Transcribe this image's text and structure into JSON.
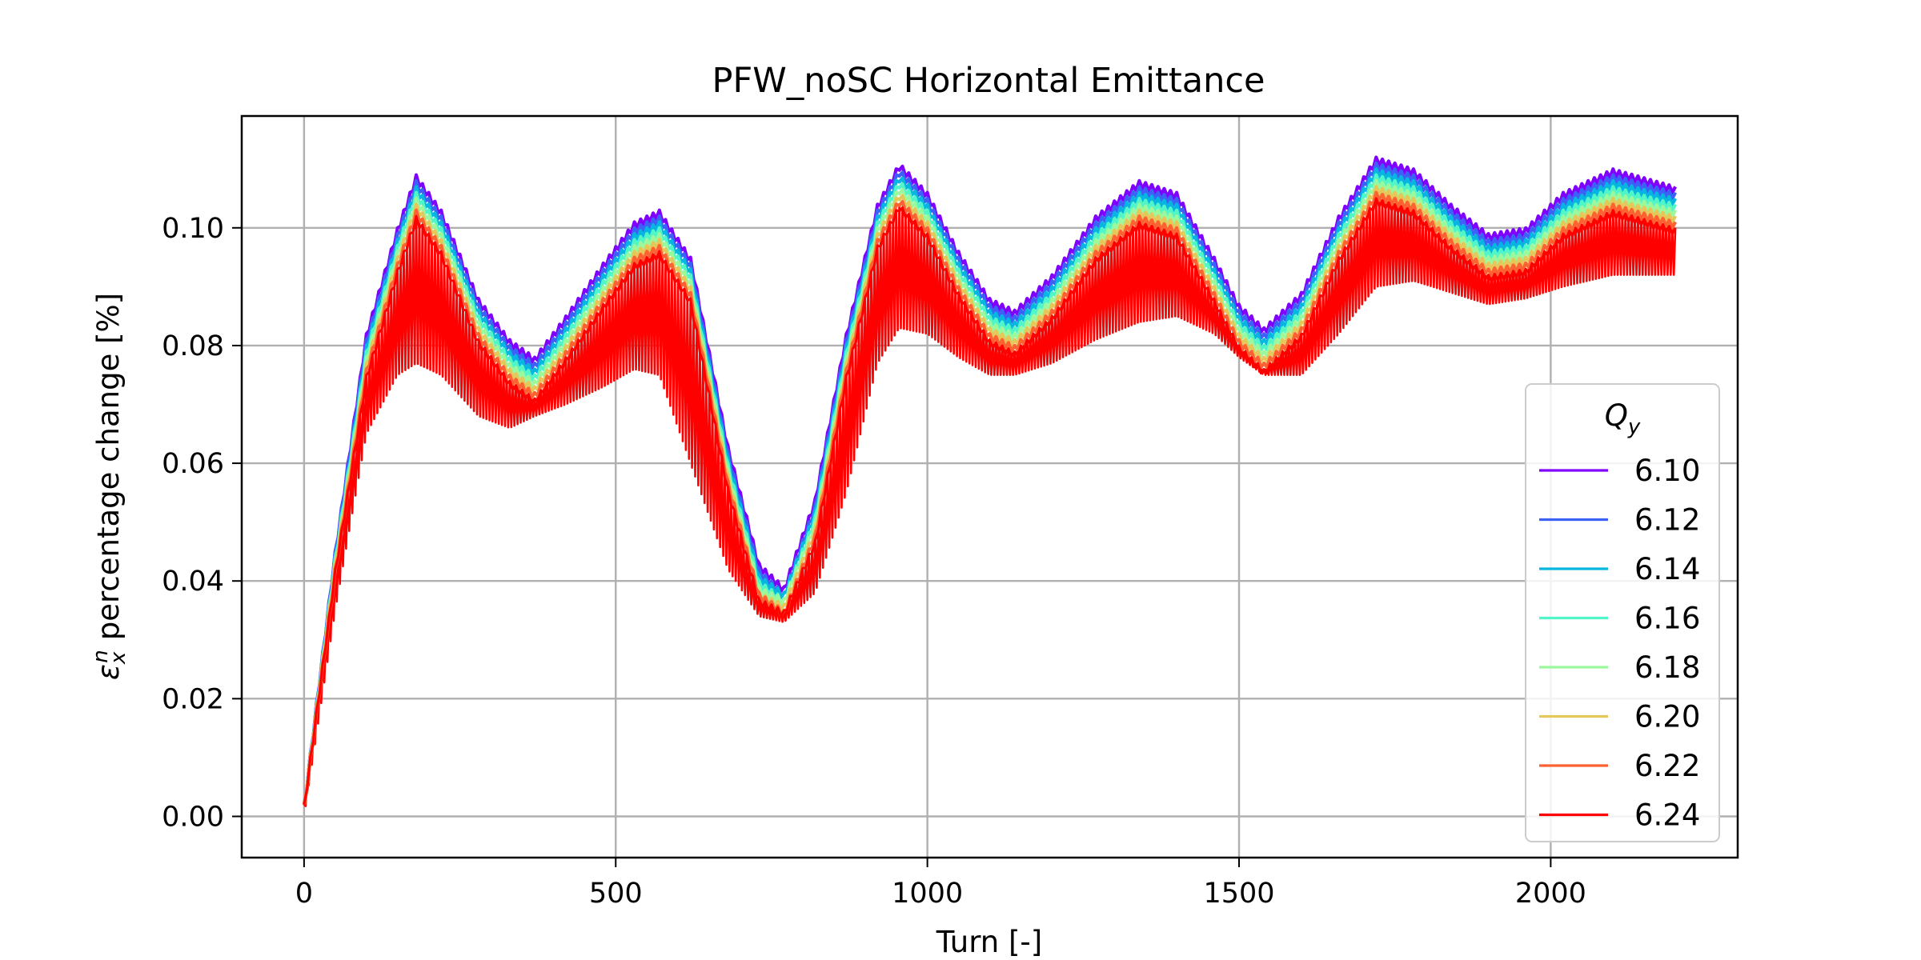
{
  "chart_data": {
    "type": "line",
    "title": "PFW_noSC Horizontal Emittance",
    "xlabel": "Turn [-]",
    "ylabel": "percentage change [%]",
    "ylabel_symbol": "ε",
    "ylabel_sub": "x",
    "ylabel_sup": "n",
    "xlim": [
      -100,
      2300
    ],
    "ylim": [
      -0.007,
      0.119
    ],
    "xticks": [
      0,
      500,
      1000,
      1500,
      2000
    ],
    "yticks": [
      0.0,
      0.02,
      0.04,
      0.06,
      0.08,
      0.1
    ],
    "xtick_labels": [
      "0",
      "500",
      "1000",
      "1500",
      "2000"
    ],
    "ytick_labels": [
      "0.00",
      "0.02",
      "0.04",
      "0.06",
      "0.08",
      "0.10"
    ],
    "grid": true,
    "legend": {
      "title": "Q",
      "title_sub": "y",
      "placement": "lower-right"
    },
    "x": [
      0,
      50,
      100,
      150,
      180,
      220,
      280,
      330,
      370,
      420,
      480,
      530,
      570,
      620,
      680,
      730,
      770,
      820,
      870,
      920,
      955,
      1000,
      1050,
      1100,
      1140,
      1200,
      1270,
      1340,
      1400,
      1460,
      1500,
      1540,
      1600,
      1660,
      1720,
      1780,
      1840,
      1900,
      1960,
      2020,
      2100,
      2200
    ],
    "min_envelope": [
      0.0,
      0.035,
      0.065,
      0.075,
      0.077,
      0.075,
      0.068,
      0.066,
      0.068,
      0.07,
      0.073,
      0.076,
      0.075,
      0.06,
      0.042,
      0.034,
      0.033,
      0.038,
      0.055,
      0.077,
      0.083,
      0.082,
      0.078,
      0.075,
      0.075,
      0.077,
      0.081,
      0.084,
      0.085,
      0.082,
      0.078,
      0.075,
      0.075,
      0.082,
      0.09,
      0.091,
      0.089,
      0.087,
      0.088,
      0.09,
      0.092,
      0.092
    ],
    "series": [
      {
        "name": "6.10",
        "color": "#8000ff",
        "values": [
          0.002,
          0.045,
          0.082,
          0.1,
          0.109,
          0.103,
          0.088,
          0.081,
          0.078,
          0.085,
          0.094,
          0.101,
          0.103,
          0.095,
          0.063,
          0.043,
          0.039,
          0.054,
          0.082,
          0.104,
          0.111,
          0.106,
          0.096,
          0.088,
          0.086,
          0.092,
          0.102,
          0.108,
          0.106,
          0.095,
          0.087,
          0.083,
          0.089,
          0.102,
          0.112,
          0.11,
          0.104,
          0.099,
          0.1,
          0.106,
          0.11,
          0.107
        ]
      },
      {
        "name": "6.12",
        "color": "#3c61f7",
        "values": [
          0.002,
          0.045,
          0.081,
          0.099,
          0.108,
          0.102,
          0.087,
          0.08,
          0.077,
          0.084,
          0.093,
          0.1,
          0.102,
          0.094,
          0.062,
          0.042,
          0.038,
          0.053,
          0.081,
          0.103,
          0.11,
          0.105,
          0.095,
          0.087,
          0.085,
          0.091,
          0.101,
          0.107,
          0.105,
          0.094,
          0.086,
          0.082,
          0.088,
          0.101,
          0.111,
          0.109,
          0.103,
          0.098,
          0.099,
          0.105,
          0.109,
          0.106
        ]
      },
      {
        "name": "6.14",
        "color": "#06b6e0",
        "values": [
          0.002,
          0.044,
          0.08,
          0.098,
          0.107,
          0.101,
          0.086,
          0.079,
          0.076,
          0.083,
          0.092,
          0.099,
          0.101,
          0.093,
          0.061,
          0.041,
          0.038,
          0.052,
          0.08,
          0.102,
          0.109,
          0.104,
          0.094,
          0.086,
          0.084,
          0.09,
          0.1,
          0.106,
          0.104,
          0.093,
          0.085,
          0.081,
          0.087,
          0.1,
          0.11,
          0.108,
          0.102,
          0.097,
          0.098,
          0.104,
          0.108,
          0.105
        ]
      },
      {
        "name": "6.16",
        "color": "#50f6c8",
        "values": [
          0.002,
          0.044,
          0.079,
          0.097,
          0.106,
          0.1,
          0.085,
          0.078,
          0.075,
          0.082,
          0.091,
          0.098,
          0.1,
          0.092,
          0.06,
          0.04,
          0.037,
          0.051,
          0.079,
          0.101,
          0.108,
          0.103,
          0.093,
          0.085,
          0.083,
          0.089,
          0.099,
          0.105,
          0.103,
          0.092,
          0.084,
          0.08,
          0.086,
          0.099,
          0.109,
          0.107,
          0.101,
          0.096,
          0.097,
          0.103,
          0.107,
          0.104
        ]
      },
      {
        "name": "6.18",
        "color": "#9cf89c",
        "values": [
          0.002,
          0.043,
          0.078,
          0.096,
          0.105,
          0.099,
          0.084,
          0.077,
          0.074,
          0.081,
          0.09,
          0.097,
          0.099,
          0.091,
          0.059,
          0.039,
          0.037,
          0.05,
          0.078,
          0.1,
          0.107,
          0.102,
          0.092,
          0.084,
          0.082,
          0.088,
          0.098,
          0.104,
          0.102,
          0.091,
          0.083,
          0.079,
          0.085,
          0.098,
          0.108,
          0.106,
          0.1,
          0.095,
          0.096,
          0.102,
          0.106,
          0.103
        ]
      },
      {
        "name": "6.20",
        "color": "#e6c85a",
        "values": [
          0.002,
          0.043,
          0.077,
          0.095,
          0.104,
          0.098,
          0.083,
          0.076,
          0.073,
          0.08,
          0.089,
          0.096,
          0.098,
          0.09,
          0.058,
          0.038,
          0.036,
          0.049,
          0.077,
          0.099,
          0.106,
          0.101,
          0.091,
          0.083,
          0.081,
          0.087,
          0.097,
          0.103,
          0.101,
          0.09,
          0.082,
          0.078,
          0.084,
          0.097,
          0.107,
          0.105,
          0.099,
          0.094,
          0.095,
          0.101,
          0.105,
          0.102
        ]
      },
      {
        "name": "6.22",
        "color": "#ff6232",
        "values": [
          0.002,
          0.042,
          0.076,
          0.094,
          0.103,
          0.097,
          0.082,
          0.075,
          0.072,
          0.079,
          0.088,
          0.095,
          0.097,
          0.089,
          0.057,
          0.038,
          0.035,
          0.048,
          0.076,
          0.098,
          0.105,
          0.1,
          0.09,
          0.082,
          0.08,
          0.086,
          0.096,
          0.102,
          0.1,
          0.089,
          0.081,
          0.077,
          0.083,
          0.096,
          0.106,
          0.104,
          0.098,
          0.093,
          0.094,
          0.1,
          0.104,
          0.101
        ]
      },
      {
        "name": "6.24",
        "color": "#ff0000",
        "values": [
          0.002,
          0.042,
          0.075,
          0.093,
          0.102,
          0.096,
          0.081,
          0.074,
          0.071,
          0.078,
          0.087,
          0.094,
          0.096,
          0.088,
          0.056,
          0.037,
          0.035,
          0.047,
          0.075,
          0.097,
          0.104,
          0.099,
          0.089,
          0.081,
          0.079,
          0.085,
          0.095,
          0.101,
          0.099,
          0.088,
          0.08,
          0.076,
          0.082,
          0.095,
          0.105,
          0.103,
          0.097,
          0.092,
          0.093,
          0.099,
          0.103,
          0.1
        ]
      }
    ]
  }
}
